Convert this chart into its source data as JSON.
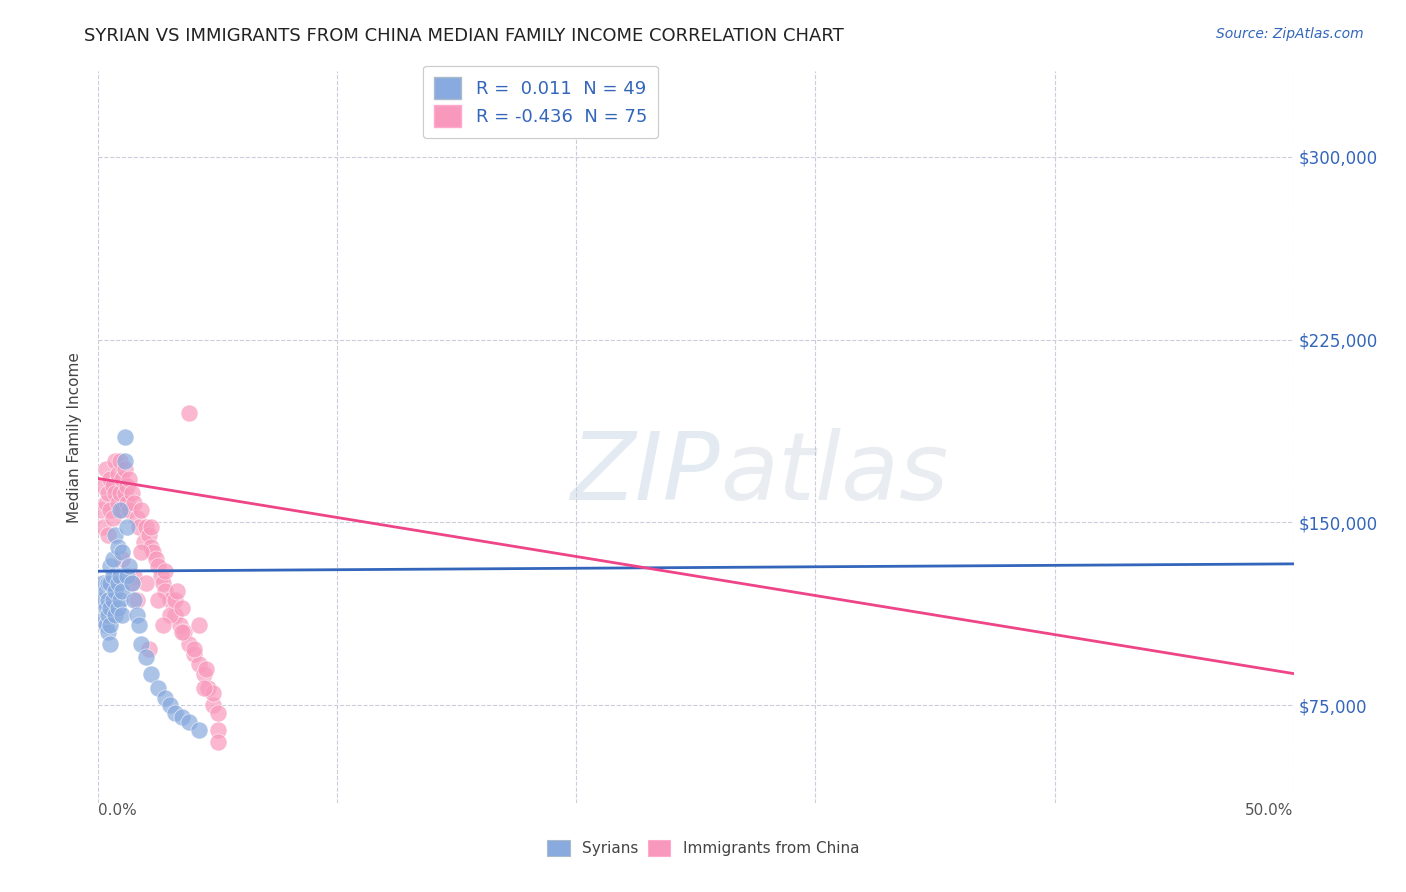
{
  "title": "SYRIAN VS IMMIGRANTS FROM CHINA MEDIAN FAMILY INCOME CORRELATION CHART",
  "source": "Source: ZipAtlas.com",
  "ylabel": "Median Family Income",
  "legend_blue": {
    "R": "0.011",
    "N": "49",
    "label": "Syrians"
  },
  "legend_pink": {
    "R": "-0.436",
    "N": "75",
    "label": "Immigrants from China"
  },
  "yticks": [
    75000,
    150000,
    225000,
    300000
  ],
  "ytick_labels": [
    "$75,000",
    "$150,000",
    "$225,000",
    "$300,000"
  ],
  "ylim": [
    35000,
    335000
  ],
  "xlim": [
    0.0,
    0.5
  ],
  "watermark_zip": "ZIP",
  "watermark_atlas": "atlas",
  "blue_color": "#88AADE",
  "pink_color": "#F899BB",
  "blue_line_color": "#3366BB",
  "pink_line_color": "#EE4488",
  "blue_scatter": {
    "x": [
      0.001,
      0.002,
      0.002,
      0.003,
      0.003,
      0.003,
      0.004,
      0.004,
      0.004,
      0.004,
      0.005,
      0.005,
      0.005,
      0.005,
      0.005,
      0.006,
      0.006,
      0.006,
      0.007,
      0.007,
      0.007,
      0.008,
      0.008,
      0.008,
      0.009,
      0.009,
      0.009,
      0.01,
      0.01,
      0.01,
      0.011,
      0.011,
      0.012,
      0.012,
      0.013,
      0.014,
      0.015,
      0.016,
      0.017,
      0.018,
      0.02,
      0.022,
      0.025,
      0.028,
      0.03,
      0.032,
      0.035,
      0.038,
      0.042
    ],
    "y": [
      118000,
      110000,
      125000,
      108000,
      115000,
      122000,
      105000,
      112000,
      118000,
      125000,
      100000,
      108000,
      115000,
      125000,
      132000,
      118000,
      128000,
      135000,
      112000,
      122000,
      145000,
      115000,
      125000,
      140000,
      118000,
      128000,
      155000,
      112000,
      122000,
      138000,
      175000,
      185000,
      128000,
      148000,
      132000,
      125000,
      118000,
      112000,
      108000,
      100000,
      95000,
      88000,
      82000,
      78000,
      75000,
      72000,
      70000,
      68000,
      65000
    ]
  },
  "pink_scatter": {
    "x": [
      0.001,
      0.002,
      0.002,
      0.003,
      0.003,
      0.004,
      0.004,
      0.005,
      0.005,
      0.006,
      0.006,
      0.007,
      0.007,
      0.008,
      0.008,
      0.009,
      0.009,
      0.01,
      0.01,
      0.011,
      0.011,
      0.012,
      0.012,
      0.013,
      0.013,
      0.014,
      0.015,
      0.016,
      0.017,
      0.018,
      0.019,
      0.02,
      0.021,
      0.022,
      0.023,
      0.024,
      0.025,
      0.026,
      0.027,
      0.028,
      0.03,
      0.032,
      0.034,
      0.036,
      0.038,
      0.04,
      0.042,
      0.044,
      0.046,
      0.048,
      0.01,
      0.015,
      0.02,
      0.025,
      0.03,
      0.035,
      0.04,
      0.045,
      0.05,
      0.038,
      0.032,
      0.028,
      0.022,
      0.018,
      0.014,
      0.035,
      0.042,
      0.048,
      0.05,
      0.033,
      0.027,
      0.021,
      0.016,
      0.044,
      0.05
    ],
    "y": [
      155000,
      148000,
      165000,
      158000,
      172000,
      145000,
      162000,
      155000,
      168000,
      152000,
      165000,
      175000,
      162000,
      158000,
      170000,
      162000,
      175000,
      155000,
      168000,
      162000,
      172000,
      158000,
      165000,
      155000,
      168000,
      162000,
      158000,
      152000,
      148000,
      155000,
      142000,
      148000,
      145000,
      140000,
      138000,
      135000,
      132000,
      128000,
      125000,
      122000,
      118000,
      112000,
      108000,
      105000,
      100000,
      96000,
      92000,
      88000,
      82000,
      75000,
      135000,
      128000,
      125000,
      118000,
      112000,
      105000,
      98000,
      90000,
      65000,
      195000,
      118000,
      130000,
      148000,
      138000,
      125000,
      115000,
      108000,
      80000,
      72000,
      122000,
      108000,
      98000,
      118000,
      82000,
      60000
    ]
  },
  "blue_line": {
    "x0": 0.0,
    "x1": 0.5,
    "y0": 130000,
    "y1": 133000
  },
  "pink_line": {
    "x0": 0.0,
    "x1": 0.5,
    "y0": 168000,
    "y1": 88000
  },
  "grid_color": "#CCCCDD",
  "background_color": "#FFFFFF",
  "title_fontsize": 13,
  "source_fontsize": 10,
  "xtick_labels": [
    "0.0%",
    "",
    "",
    "",
    "",
    "50.0%"
  ]
}
